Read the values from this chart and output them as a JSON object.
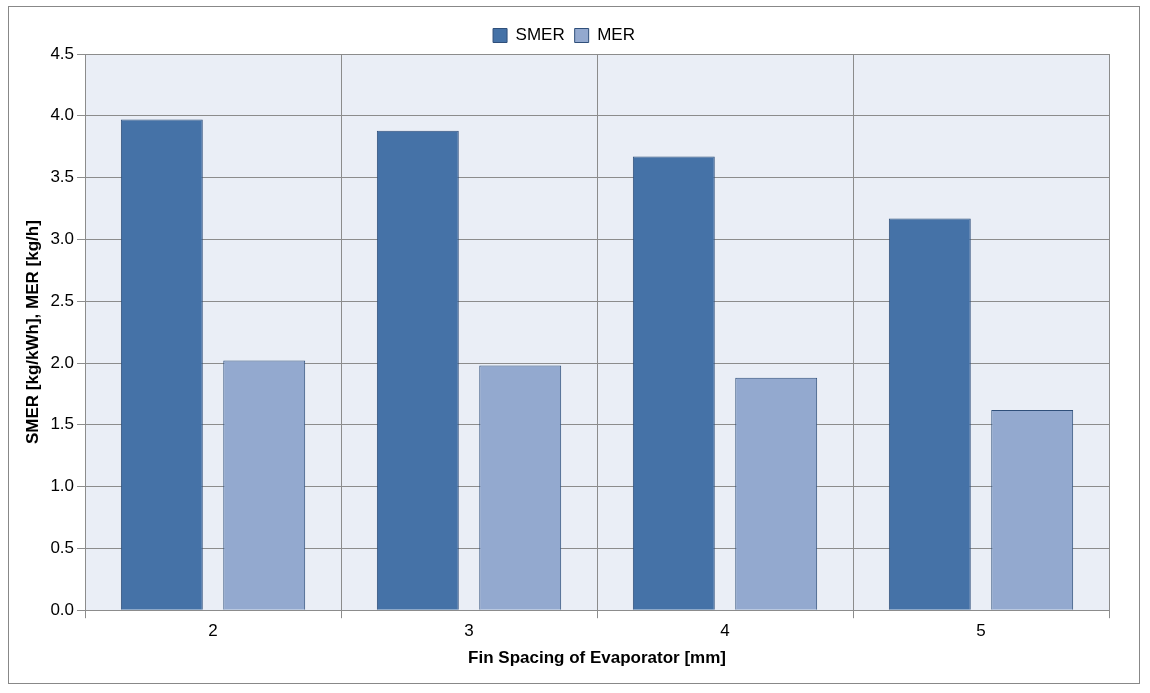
{
  "chart_data": {
    "type": "bar",
    "xlabel": "Fin Spacing of Evaporator [mm]",
    "ylabel": "SMER [kg/kWh], MER [kg/h]",
    "categories": [
      "2",
      "3",
      "4",
      "5"
    ],
    "series": [
      {
        "name": "SMER",
        "color": "#4572a7",
        "values": [
          3.97,
          3.88,
          3.67,
          3.17
        ]
      },
      {
        "name": "MER",
        "color": "#93a9cf",
        "values": [
          2.02,
          1.98,
          1.88,
          1.62
        ]
      }
    ],
    "ylim": [
      0,
      4.5
    ],
    "yticks": [
      {
        "value": 0,
        "label": "0.0"
      },
      {
        "value": 0.5,
        "label": "0.5"
      },
      {
        "value": 1,
        "label": "1.0"
      },
      {
        "value": 1.5,
        "label": "1.5"
      },
      {
        "value": 2,
        "label": "2.0"
      },
      {
        "value": 2.5,
        "label": "2.5"
      },
      {
        "value": 3,
        "label": "3.0"
      },
      {
        "value": 3.5,
        "label": "3.5"
      },
      {
        "value": 4,
        "label": "4.0"
      },
      {
        "value": 4.5,
        "label": "4.5"
      }
    ],
    "grid": true,
    "legend": "top"
  }
}
